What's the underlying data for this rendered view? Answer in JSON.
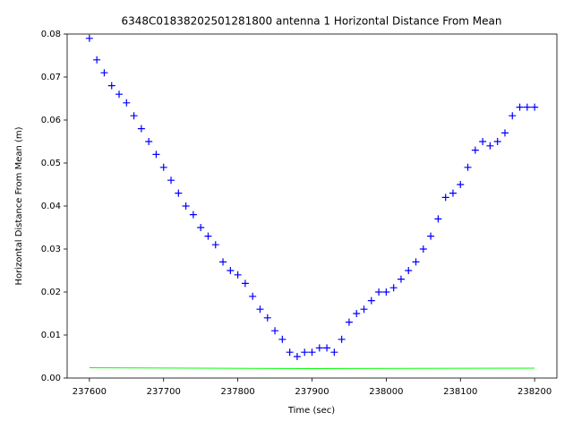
{
  "chart_data": {
    "type": "scatter",
    "title": "6348C01838202501281800 antenna 1 Horizontal Distance From Mean",
    "x_label": "Time (sec)",
    "y_label": "Horizontal Distance From Mean (m)",
    "xlim": [
      237570,
      238230
    ],
    "ylim": [
      0,
      0.08
    ],
    "xticks": [
      237600,
      237700,
      237800,
      237900,
      238000,
      238100,
      238200
    ],
    "yticks": [
      {
        "value": 0,
        "label": "0.00"
      },
      {
        "value": 0.01,
        "label": "0.01"
      },
      {
        "value": 0.02,
        "label": "0.02"
      },
      {
        "value": 0.03,
        "label": "0.03"
      },
      {
        "value": 0.04,
        "label": "0.04"
      },
      {
        "value": 0.05,
        "label": "0.05"
      },
      {
        "value": 0.06,
        "label": "0.06"
      },
      {
        "value": 0.07,
        "label": "0.07"
      },
      {
        "value": 0.08,
        "label": "0.08"
      }
    ],
    "series": [
      {
        "color": "#0000ff",
        "marker": "+",
        "x": [
          237600,
          237610,
          237620,
          237630,
          237640,
          237650,
          237660,
          237670,
          237680,
          237690,
          237700,
          237710,
          237720,
          237730,
          237740,
          237750,
          237760,
          237770,
          237780,
          237790,
          237800,
          237810,
          237820,
          237830,
          237840,
          237850,
          237860,
          237870,
          237880,
          237890,
          237900,
          237910,
          237920,
          237930,
          237940,
          237950,
          237960,
          237970,
          237980,
          237990,
          238000,
          238010,
          238020,
          238030,
          238040,
          238050,
          238060,
          238070,
          238080,
          238090,
          238100,
          238110,
          238120,
          238130,
          238140,
          238150,
          238160,
          238170,
          238180,
          238190,
          238200
        ],
        "values": [
          0.079,
          0.074,
          0.071,
          0.068,
          0.066,
          0.064,
          0.061,
          0.058,
          0.055,
          0.052,
          0.049,
          0.046,
          0.043,
          0.04,
          0.038,
          0.035,
          0.033,
          0.031,
          0.027,
          0.025,
          0.024,
          0.022,
          0.019,
          0.016,
          0.014,
          0.011,
          0.009,
          0.006,
          0.005,
          0.006,
          0.006,
          0.007,
          0.007,
          0.006,
          0.009,
          0.013,
          0.015,
          0.016,
          0.018,
          0.02,
          0.02,
          0.021,
          0.023,
          0.025,
          0.027,
          0.03,
          0.033,
          0.037,
          0.042,
          0.043,
          0.045,
          0.049,
          0.053,
          0.055,
          0.054,
          0.055,
          0.057,
          0.061,
          0.063,
          0.063,
          0.063
        ]
      },
      {
        "color": "#00ff00",
        "marker": "line",
        "x": [
          237600,
          237900,
          238200
        ],
        "values": [
          0.0024,
          0.0022,
          0.0023
        ]
      }
    ]
  }
}
